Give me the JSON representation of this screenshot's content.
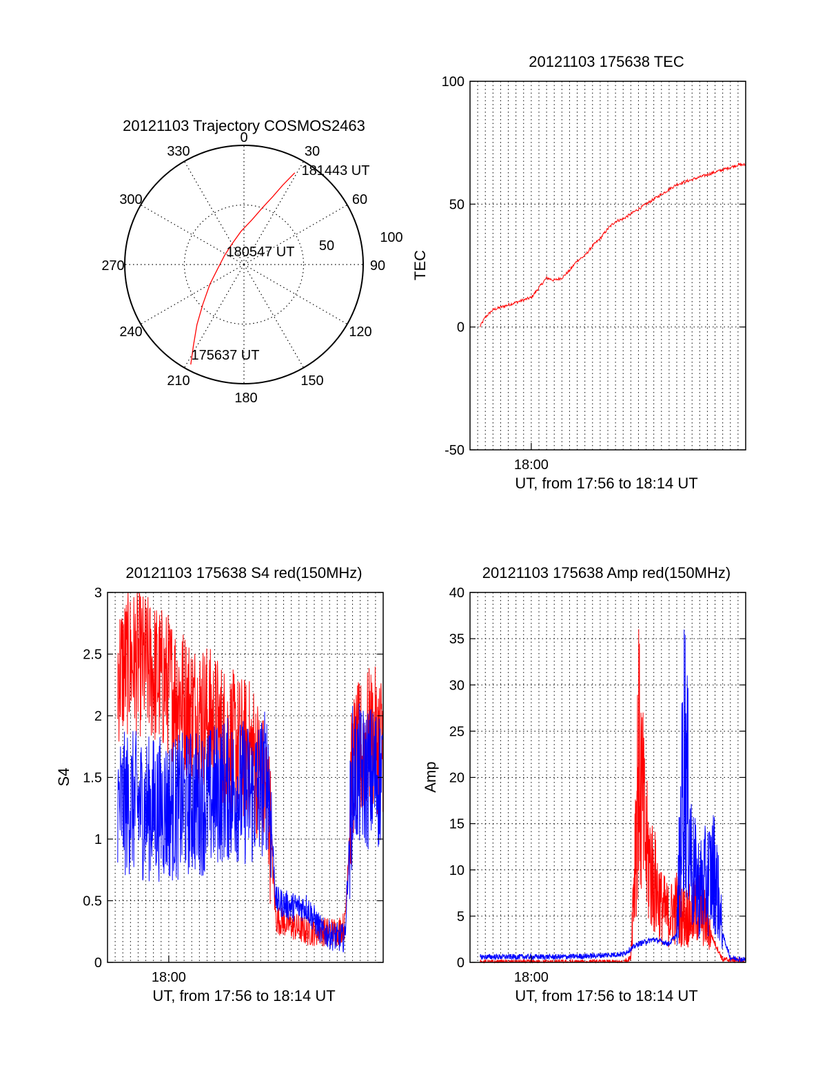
{
  "colors": {
    "red": "#ff0000",
    "blue": "#0000ff",
    "axis": "#000000"
  },
  "chart_data": [
    {
      "id": "trajectory",
      "type": "polar",
      "title": "20121103 Trajectory COSMOS2463",
      "angle_labels": [
        "0",
        "30",
        "60",
        "90",
        "120",
        "150",
        "180",
        "210",
        "240",
        "270",
        "300",
        "330"
      ],
      "radial_labels": [
        "50",
        "100"
      ],
      "rlim": [
        0,
        100
      ],
      "grid": true,
      "series": [
        {
          "color": "red",
          "points": [
            {
              "az": 208,
              "r": 95
            },
            {
              "az": 212,
              "r": 80
            },
            {
              "az": 218,
              "r": 64
            },
            {
              "az": 226,
              "r": 48
            },
            {
              "az": 240,
              "r": 33
            },
            {
              "az": 262,
              "r": 22
            },
            {
              "az": 295,
              "r": 18
            },
            {
              "az": 330,
              "r": 20
            },
            {
              "az": 355,
              "r": 28
            },
            {
              "az": 10,
              "r": 38
            },
            {
              "az": 18,
              "r": 50
            },
            {
              "az": 23,
              "r": 62
            },
            {
              "az": 26,
              "r": 74
            },
            {
              "az": 29,
              "r": 88
            }
          ]
        }
      ],
      "annotations": [
        {
          "text": "175637 UT",
          "az": 206,
          "r": 96
        },
        {
          "text": "180547 UT",
          "az": 160,
          "r": 8
        },
        {
          "text": "181443 UT",
          "az": 30,
          "r": 90
        }
      ]
    },
    {
      "id": "tec",
      "type": "line",
      "title": "20121103 175638 TEC",
      "xlabel": "UT, from 17:56 to 18:14 UT",
      "ylabel": "TEC",
      "xlim": [
        "17:56",
        "18:14"
      ],
      "ylim": [
        -50,
        100
      ],
      "yticks": [
        "-50",
        "0",
        "50",
        "100"
      ],
      "xticks": [
        {
          "label": "18:00",
          "x": "18:00"
        }
      ],
      "grid": true,
      "series": [
        {
          "color": "red",
          "points": [
            [
              "17:56:38",
              0
            ],
            [
              "17:57:00",
              4
            ],
            [
              "17:57:30",
              7
            ],
            [
              "17:58:00",
              8
            ],
            [
              "17:58:30",
              9
            ],
            [
              "17:59:00",
              10
            ],
            [
              "17:59:30",
              11
            ],
            [
              "18:00:00",
              12
            ],
            [
              "18:00:30",
              16
            ],
            [
              "18:01:00",
              20
            ],
            [
              "18:01:30",
              19
            ],
            [
              "18:02:00",
              20
            ],
            [
              "18:02:30",
              23
            ],
            [
              "18:03:00",
              27
            ],
            [
              "18:03:30",
              29
            ],
            [
              "18:04:00",
              33
            ],
            [
              "18:04:30",
              36
            ],
            [
              "18:05:00",
              40
            ],
            [
              "18:05:30",
              43
            ],
            [
              "18:06:00",
              44
            ],
            [
              "18:06:30",
              46
            ],
            [
              "18:07:00",
              48
            ],
            [
              "18:07:30",
              50
            ],
            [
              "18:08:00",
              52
            ],
            [
              "18:08:30",
              54
            ],
            [
              "18:09:00",
              56
            ],
            [
              "18:09:30",
              58
            ],
            [
              "18:10:00",
              59
            ],
            [
              "18:10:30",
              60
            ],
            [
              "18:11:00",
              61
            ],
            [
              "18:11:30",
              62
            ],
            [
              "18:12:00",
              63
            ],
            [
              "18:12:30",
              64
            ],
            [
              "18:13:00",
              65
            ],
            [
              "18:13:30",
              66
            ],
            [
              "18:14:00",
              66
            ]
          ]
        }
      ]
    },
    {
      "id": "s4",
      "type": "line",
      "title": "20121103 175638 S4 red(150MHz)",
      "xlabel": "UT, from 17:56 to 18:14 UT",
      "ylabel": "S4",
      "xlim": [
        "17:56",
        "18:14"
      ],
      "ylim": [
        0,
        3
      ],
      "yticks": [
        "0",
        "0.5",
        "1",
        "1.5",
        "2",
        "2.5",
        "3"
      ],
      "xticks": [
        {
          "label": "18:00",
          "x": "18:00"
        }
      ],
      "grid": true,
      "series": [
        {
          "color": "red",
          "points": [
            [
              "17:56:40",
              2.35
            ],
            [
              "17:57:30",
              2.45
            ],
            [
              "17:58:30",
              2.4
            ],
            [
              "17:59:30",
              2.3
            ],
            [
              "18:00:30",
              2.2
            ],
            [
              "18:01:30",
              2.05
            ],
            [
              "18:02:30",
              2.0
            ],
            [
              "18:03:30",
              1.85
            ],
            [
              "18:04:30",
              1.75
            ],
            [
              "18:05:30",
              1.7
            ],
            [
              "18:06:30",
              1.3
            ],
            [
              "18:07:00",
              0.35
            ],
            [
              "18:08:00",
              0.3
            ],
            [
              "18:09:00",
              0.25
            ],
            [
              "18:10:00",
              0.25
            ],
            [
              "18:11:00",
              0.25
            ],
            [
              "18:11:30",
              0.3
            ],
            [
              "18:12:00",
              1.6
            ],
            [
              "18:13:00",
              1.8
            ],
            [
              "18:14:00",
              1.8
            ]
          ]
        },
        {
          "color": "blue",
          "points": [
            [
              "17:56:40",
              1.25
            ],
            [
              "17:57:30",
              1.3
            ],
            [
              "17:58:30",
              1.25
            ],
            [
              "17:59:30",
              1.25
            ],
            [
              "18:00:30",
              1.25
            ],
            [
              "18:01:30",
              1.3
            ],
            [
              "18:02:30",
              1.3
            ],
            [
              "18:03:30",
              1.4
            ],
            [
              "18:04:30",
              1.4
            ],
            [
              "18:05:30",
              1.35
            ],
            [
              "18:06:30",
              1.5
            ],
            [
              "18:07:00",
              0.5
            ],
            [
              "18:08:00",
              0.45
            ],
            [
              "18:09:00",
              0.45
            ],
            [
              "18:10:00",
              0.25
            ],
            [
              "18:11:00",
              0.2
            ],
            [
              "18:11:30",
              0.2
            ],
            [
              "18:12:00",
              1.5
            ],
            [
              "18:13:00",
              1.5
            ],
            [
              "18:14:00",
              1.5
            ]
          ]
        }
      ]
    },
    {
      "id": "amp",
      "type": "line",
      "title": "20121103 175638 Amp red(150MHz)",
      "xlabel": "UT, from 17:56 to 18:14 UT",
      "ylabel": "Amp",
      "xlim": [
        "17:56",
        "18:14"
      ],
      "ylim": [
        0,
        40
      ],
      "yticks": [
        "0",
        "5",
        "10",
        "15",
        "20",
        "25",
        "30",
        "35",
        "40"
      ],
      "xticks": [
        {
          "label": "18:00",
          "x": "18:00"
        }
      ],
      "grid": true,
      "series": [
        {
          "color": "red",
          "points": [
            [
              "17:56:40",
              0
            ],
            [
              "18:06:00",
              0
            ],
            [
              "18:06:30",
              0.5
            ],
            [
              "18:07:00",
              22
            ],
            [
              "18:07:30",
              12
            ],
            [
              "18:08:00",
              9
            ],
            [
              "18:08:30",
              6
            ],
            [
              "18:09:00",
              5
            ],
            [
              "18:09:30",
              6
            ],
            [
              "18:10:00",
              5
            ],
            [
              "18:10:30",
              5
            ],
            [
              "18:11:00",
              6
            ],
            [
              "18:11:30",
              4
            ],
            [
              "18:12:00",
              2
            ],
            [
              "18:12:30",
              0.3
            ],
            [
              "18:14:00",
              0.2
            ]
          ]
        },
        {
          "color": "blue",
          "points": [
            [
              "17:56:40",
              0.6
            ],
            [
              "17:58:00",
              0.6
            ],
            [
              "18:00:00",
              0.6
            ],
            [
              "18:02:00",
              0.6
            ],
            [
              "18:04:00",
              0.7
            ],
            [
              "18:06:00",
              0.9
            ],
            [
              "18:07:00",
              2
            ],
            [
              "18:08:00",
              2.5
            ],
            [
              "18:09:00",
              2
            ],
            [
              "18:09:30",
              3
            ],
            [
              "18:10:00",
              24
            ],
            [
              "18:10:30",
              10
            ],
            [
              "18:11:00",
              8
            ],
            [
              "18:11:30",
              9
            ],
            [
              "18:12:00",
              10
            ],
            [
              "18:12:30",
              3
            ],
            [
              "18:13:00",
              0.5
            ],
            [
              "18:14:00",
              0.3
            ]
          ]
        }
      ]
    }
  ]
}
